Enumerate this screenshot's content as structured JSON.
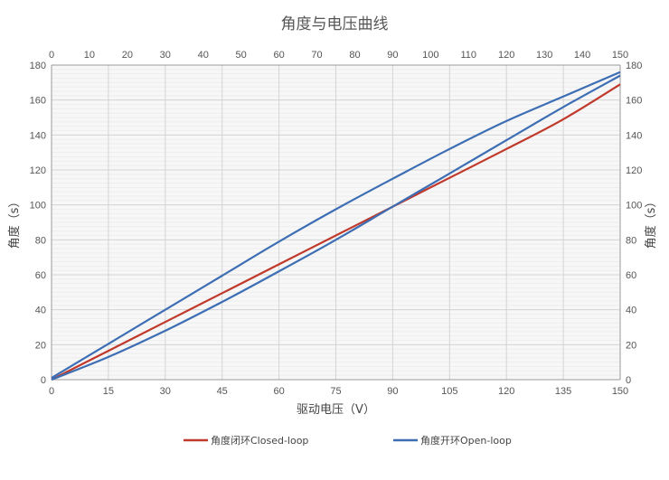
{
  "chart_data": {
    "type": "line",
    "title": "角度与电压曲线",
    "xlabel": "驱动电压（V）",
    "ylabel": "角度（s）",
    "y2label": "角度（s）",
    "xlim": [
      0,
      150
    ],
    "ylim": [
      0,
      180
    ],
    "x_ticks_bottom": [
      0,
      15,
      30,
      45,
      60,
      75,
      90,
      105,
      120,
      135,
      150
    ],
    "x_ticks_top": [
      0,
      10,
      20,
      30,
      40,
      50,
      60,
      70,
      80,
      90,
      100,
      110,
      120,
      130,
      140,
      150
    ],
    "y_ticks": [
      0,
      20,
      40,
      60,
      80,
      100,
      120,
      140,
      160,
      180
    ],
    "grid": true,
    "legend_position": "bottom",
    "x": [
      0,
      15,
      30,
      45,
      60,
      75,
      90,
      105,
      120,
      135,
      150
    ],
    "series": [
      {
        "name": "角度闭环Closed-loop",
        "color": "#c0392b",
        "curves": [
          [
            0,
            16.5,
            33,
            49.5,
            66,
            82.5,
            99,
            115.5,
            132,
            149,
            169
          ]
        ]
      },
      {
        "name": "角度开环Open-loop",
        "color": "#3d6eb4",
        "curves": [
          [
            1,
            20.5,
            40,
            59.5,
            79,
            97.5,
            115,
            132,
            148,
            162,
            176
          ],
          [
            0,
            13,
            28,
            44.5,
            62,
            80,
            99,
            118,
            137,
            156,
            174
          ]
        ]
      }
    ]
  }
}
